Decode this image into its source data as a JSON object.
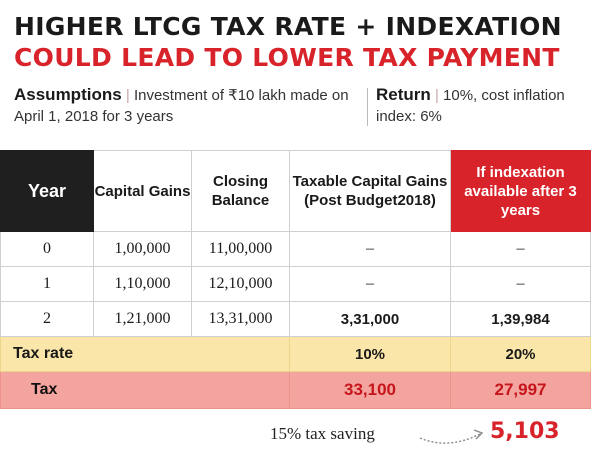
{
  "title_line1": "HIGHER LTCG TAX RATE + INDEXATION",
  "title_line2": "COULD LEAD TO LOWER TAX PAYMENT",
  "assumptions": {
    "label": "Assumptions",
    "text": "Investment of ₹10 lakh made on April 1, 2018 for 3 years"
  },
  "return_info": {
    "label": "Return",
    "text": "10%, cost inflation index: 6%"
  },
  "table": {
    "headers": {
      "year": "Year",
      "capital_gains": "Capital Gains",
      "closing_balance": "Closing Balance",
      "taxable": "Taxable Capital Gains (Post Budget2018)",
      "indexation": "If indexation available after 3 years"
    },
    "rows": [
      {
        "year": "0",
        "capital_gains": "1,00,000",
        "closing_balance": "11,00,000",
        "taxable": "–",
        "indexation": "–"
      },
      {
        "year": "1",
        "capital_gains": "1,10,000",
        "closing_balance": "12,10,000",
        "taxable": "–",
        "indexation": "–"
      },
      {
        "year": "2",
        "capital_gains": "1,21,000",
        "closing_balance": "13,31,000",
        "taxable": "3,31,000",
        "indexation": "1,39,984"
      }
    ],
    "tax_rate": {
      "label": "Tax rate",
      "taxable": "10%",
      "indexation": "20%"
    },
    "tax": {
      "label": "Tax",
      "taxable": "33,100",
      "indexation": "27,997"
    }
  },
  "saving": {
    "label": "15% tax saving",
    "value": "5,103"
  },
  "colors": {
    "accent_red": "#d8232a",
    "header_dark": "#1f1f1f",
    "rate_band": "#fbe6a9",
    "tax_band": "#f4a49e"
  }
}
